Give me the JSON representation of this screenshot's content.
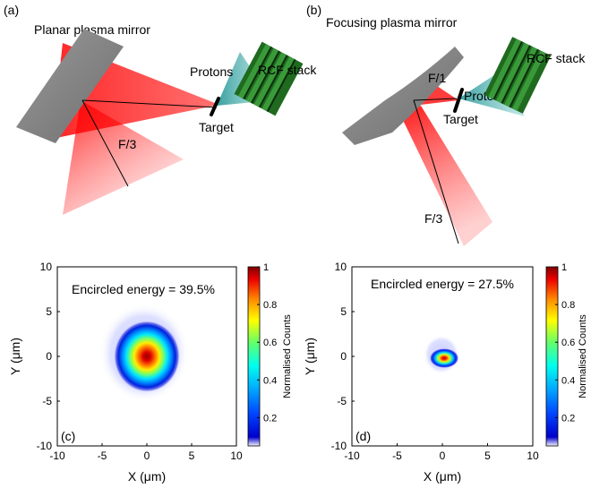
{
  "figure": {
    "panel_a": {
      "label": "(a)",
      "title": "Planar plasma mirror",
      "protons_label": "Protons",
      "rcf_label": "RCF stack",
      "target_label": "Target",
      "f_label": "F/3"
    },
    "panel_b": {
      "label": "(b)",
      "title": "Focusing plasma mirror",
      "rcf_label": "RCF stack",
      "protons_label": "Protons",
      "target_label": "Target",
      "f1_label": "F/1",
      "f3_label": "F/3"
    },
    "colors": {
      "mirror": "#8a8a8a",
      "beam": "#ff1a1a",
      "protons": "#3aa8a8",
      "rcf_frame": "#1f6a1f",
      "rcf_stripe": "#2e8b2e",
      "rcf_gap": "#0d2e0d"
    }
  },
  "chart_data": [
    {
      "type": "heatmap",
      "panel": "(c)",
      "annotation": "Encircled energy = 39.5%",
      "xlabel": "X (μm)",
      "ylabel": "Y (μm)",
      "xlim": [
        -10,
        10
      ],
      "ylim": [
        -10,
        10
      ],
      "xticks": [
        -10,
        -5,
        0,
        5,
        10
      ],
      "yticks": [
        -10,
        -5,
        0,
        5,
        10
      ],
      "colorbar": {
        "label": "Normalised Counts",
        "ticks": [
          "0.2",
          "0.4",
          "0.6",
          "0.8",
          "1"
        ],
        "tick_values": [
          0.2,
          0.4,
          0.6,
          0.8,
          1.0
        ],
        "range": [
          0.05,
          1.0
        ],
        "colormap": "jet"
      },
      "spot": {
        "center_x": 0.0,
        "center_y": 0.0,
        "radius_x": 3.7,
        "radius_y": 4.0,
        "halo_extent_um": 5.0
      }
    },
    {
      "type": "heatmap",
      "panel": "(d)",
      "annotation": "Encircled energy = 27.5%",
      "xlabel": "X (μm)",
      "ylabel": "Y (μm)",
      "xlim": [
        -10,
        10
      ],
      "ylim": [
        -10,
        10
      ],
      "xticks": [
        -10,
        -5,
        0,
        5,
        10
      ],
      "yticks": [
        -10,
        -5,
        0,
        5,
        10
      ],
      "colorbar": {
        "label": "Normalised Counts",
        "ticks": [
          "0.2",
          "0.4",
          "0.6",
          "0.8",
          "1"
        ],
        "tick_values": [
          0.2,
          0.4,
          0.6,
          0.8,
          1.0
        ],
        "range": [
          0.05,
          1.0
        ],
        "colormap": "jet"
      },
      "spot": {
        "center_x": 0.2,
        "center_y": -0.2,
        "radius_x": 1.6,
        "radius_y": 1.1,
        "halo_extent_um": 2.0
      }
    }
  ]
}
